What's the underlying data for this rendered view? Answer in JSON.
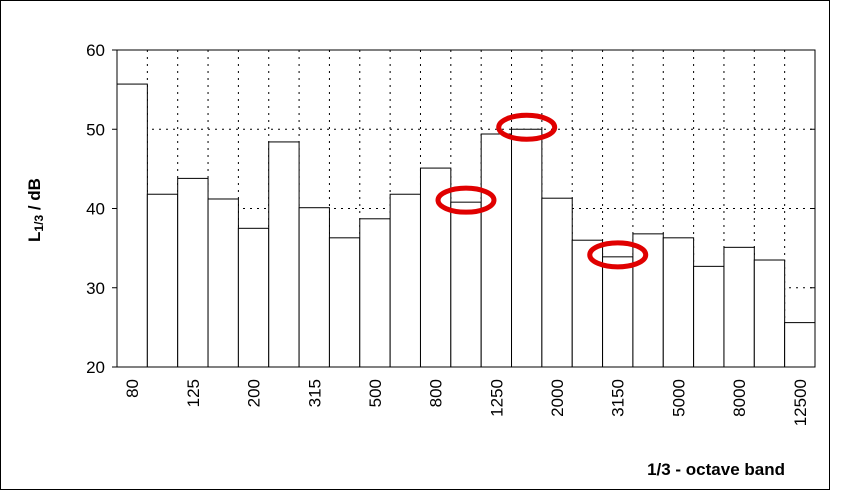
{
  "chart_data": {
    "type": "bar",
    "y_title": {
      "main": "L",
      "sub": "1/3",
      "rest": " / dB"
    },
    "x_title": "1/3 - octave band",
    "categories": [
      "80",
      null,
      "125",
      null,
      "200",
      null,
      "315",
      null,
      "500",
      null,
      "800",
      null,
      "1250",
      null,
      "2000",
      null,
      "3150",
      null,
      "5000",
      null,
      "8000",
      null,
      "12500"
    ],
    "values": [
      55.7,
      41.8,
      43.8,
      41.2,
      37.5,
      48.4,
      40.1,
      36.3,
      38.7,
      41.8,
      45.1,
      40.8,
      49.4,
      50.0,
      41.3,
      36.0,
      33.9,
      36.8,
      36.3,
      32.7,
      35.1,
      33.5,
      25.6
    ],
    "color": "#ffffff",
    "ylim": [
      20,
      60
    ],
    "yticks": [
      20,
      30,
      40,
      50,
      60
    ],
    "grid": true
  }
}
